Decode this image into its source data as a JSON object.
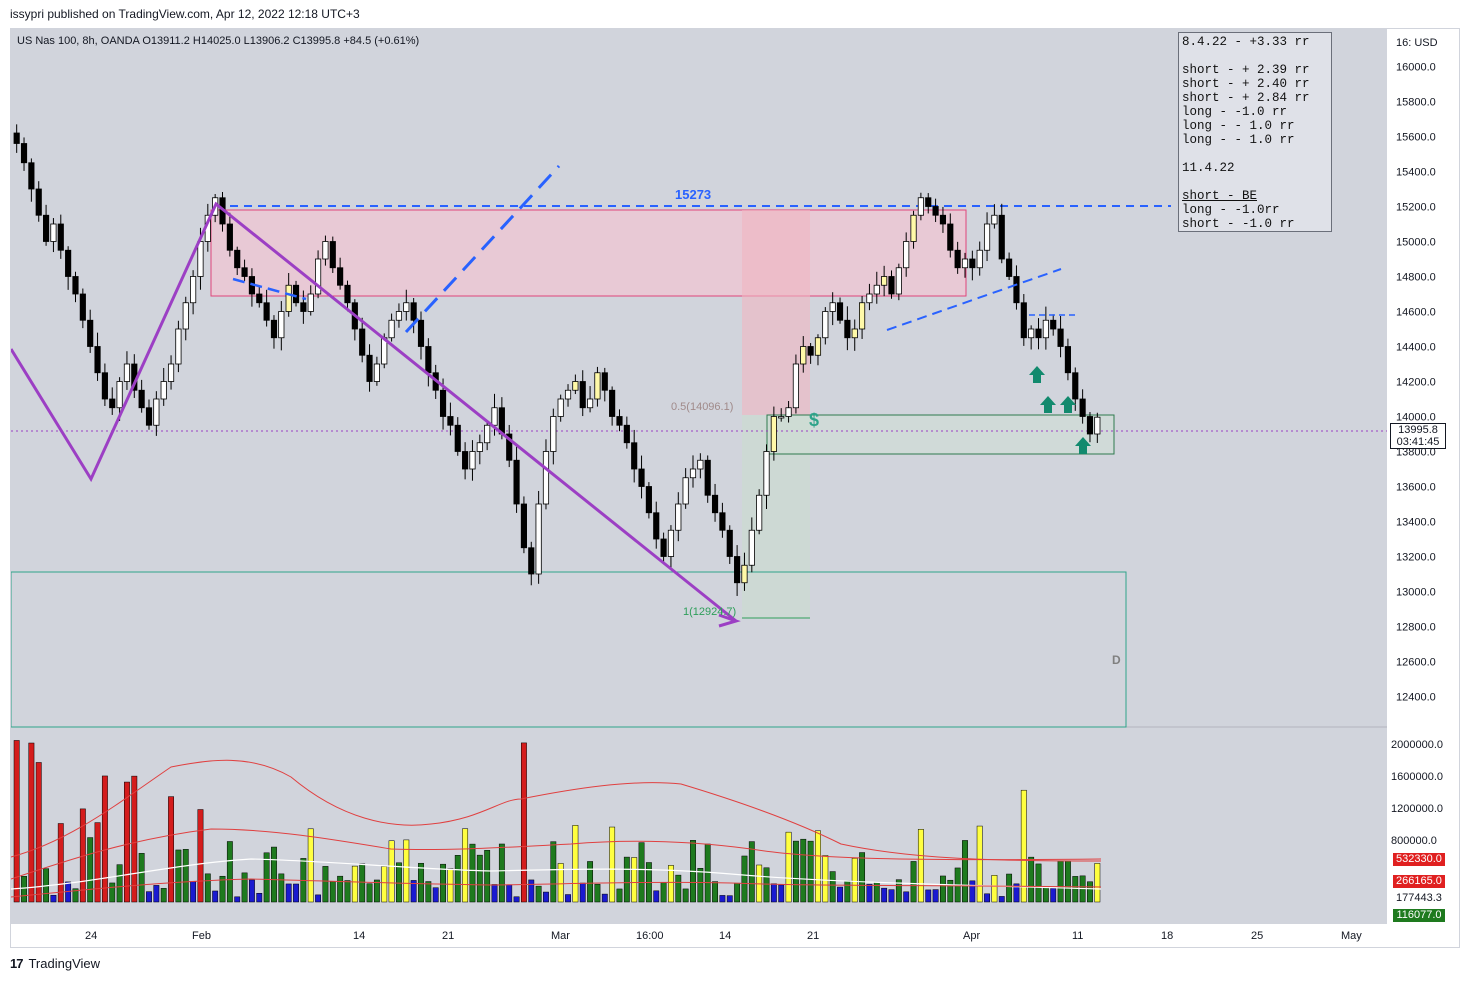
{
  "publisher": "issypri published on TradingView.com, Apr 12, 2022 12:18 UTC+3",
  "footer": {
    "logo": "TradingView"
  },
  "symbol_header": "US Nas 100, 8h, OANDA  O13911.2  H14025.0  L13906.2  C13995.8  +84.5 (+0.61%)",
  "currency_label": "16: USD",
  "legend_lines": [
    {
      "text": "8.4.22 - +3.33 rr",
      "underline": false
    },
    {
      "text": "",
      "underline": false
    },
    {
      "text": "short - + 2.39 rr",
      "underline": false
    },
    {
      "text": "short - + 2.40 rr",
      "underline": false
    },
    {
      "text": "short - + 2.84 rr",
      "underline": false
    },
    {
      "text": "long - -1.0 rr",
      "underline": false
    },
    {
      "text": "long - - 1.0 rr",
      "underline": false
    },
    {
      "text": "long - - 1.0 rr",
      "underline": false
    },
    {
      "text": "",
      "underline": false
    },
    {
      "text": "11.4.22",
      "underline": false
    },
    {
      "text": "",
      "underline": false
    },
    {
      "text": "short - BE",
      "underline": true
    },
    {
      "text": "long - -1.0rr",
      "underline": false
    },
    {
      "text": "short - -1.0 rr",
      "underline": false
    }
  ],
  "annotations": {
    "level_label": "15273",
    "fib_half": "0.5(14096.1)",
    "fib_one": "1(12924.7)",
    "dollar": "$",
    "d_label": "D",
    "current_price": "13995.8",
    "countdown": "03:41:45"
  },
  "volume_tags": [
    "532330.0",
    "266165.0",
    "177443.3",
    "116077.0"
  ],
  "colors": {
    "background": "#d1d4dc",
    "bull": "#ffffff",
    "bear": "#000000",
    "highlight": "#fff9a8",
    "purple": "#9c3fc4",
    "blue_dash": "#2962ff",
    "supply_zone": "#f2b6c7",
    "demand_zone": "#c9dccf",
    "vol_red": "#d41c1c",
    "vol_yellow": "#ffff40",
    "vol_green": "#1e7a1e",
    "vol_blue": "#1a1ad0",
    "arrow": "#128a6e"
  },
  "chart_data": {
    "type": "candlestick",
    "price_axis": {
      "ticks": [
        "16000.0",
        "15800.0",
        "15600.0",
        "15400.0",
        "15200.0",
        "15000.0",
        "14800.0",
        "14600.0",
        "14400.0",
        "14200.0",
        "14000.0",
        "13800.0",
        "13600.0",
        "13400.0",
        "13200.0",
        "13000.0",
        "12800.0",
        "12600.0",
        "12400.0"
      ],
      "range": [
        12300,
        16200
      ]
    },
    "volume_axis": {
      "ticks": [
        "2000000.0",
        "1600000.0",
        "1200000.0",
        "800000.0"
      ]
    },
    "time_axis": {
      "ticks": [
        "24",
        "Feb",
        "14",
        "21",
        "Mar",
        "16:00",
        "14",
        "21",
        "Apr",
        "11",
        "18",
        "25",
        "May"
      ]
    },
    "close_series": [
      15560,
      15450,
      15300,
      15150,
      15000,
      15100,
      14950,
      14800,
      14700,
      14550,
      14400,
      14250,
      14100,
      14050,
      14200,
      14300,
      14150,
      14050,
      13950,
      14100,
      14200,
      14300,
      14500,
      14650,
      14800,
      15000,
      15150,
      15250,
      15100,
      14950,
      14850,
      14800,
      14700,
      14650,
      14550,
      14450,
      14600,
      14750,
      14650,
      14600,
      14700,
      14900,
      15000,
      14850,
      14750,
      14650,
      14500,
      14350,
      14200,
      14300,
      14450,
      14550,
      14600,
      14650,
      14550,
      14400,
      14250,
      14150,
      14000,
      13950,
      13800,
      13700,
      13800,
      13850,
      13950,
      14050,
      13900,
      13750,
      13500,
      13250,
      13100,
      13500,
      13800,
      14000,
      14100,
      14150,
      14200,
      14050,
      14100,
      14250,
      14150,
      14000,
      13950,
      13850,
      13700,
      13600,
      13450,
      13300,
      13200,
      13350,
      13500,
      13650,
      13700,
      13750,
      13550,
      13450,
      13350,
      13200,
      13050,
      13150,
      13350,
      13550,
      13800,
      14000,
      14000,
      14050,
      14300,
      14400,
      14350,
      14450,
      14600,
      14650,
      14550,
      14450,
      14500,
      14650,
      14700,
      14750,
      14800,
      14700,
      14850,
      15000,
      15150,
      15250,
      15200,
      15150,
      15100,
      14950,
      14850,
      14900,
      14850,
      14950,
      15100,
      15150,
      14900,
      14800,
      14650,
      14450,
      14500,
      14450,
      14550,
      14500,
      14400,
      14250,
      14100,
      14000,
      13900,
      13996
    ]
  }
}
